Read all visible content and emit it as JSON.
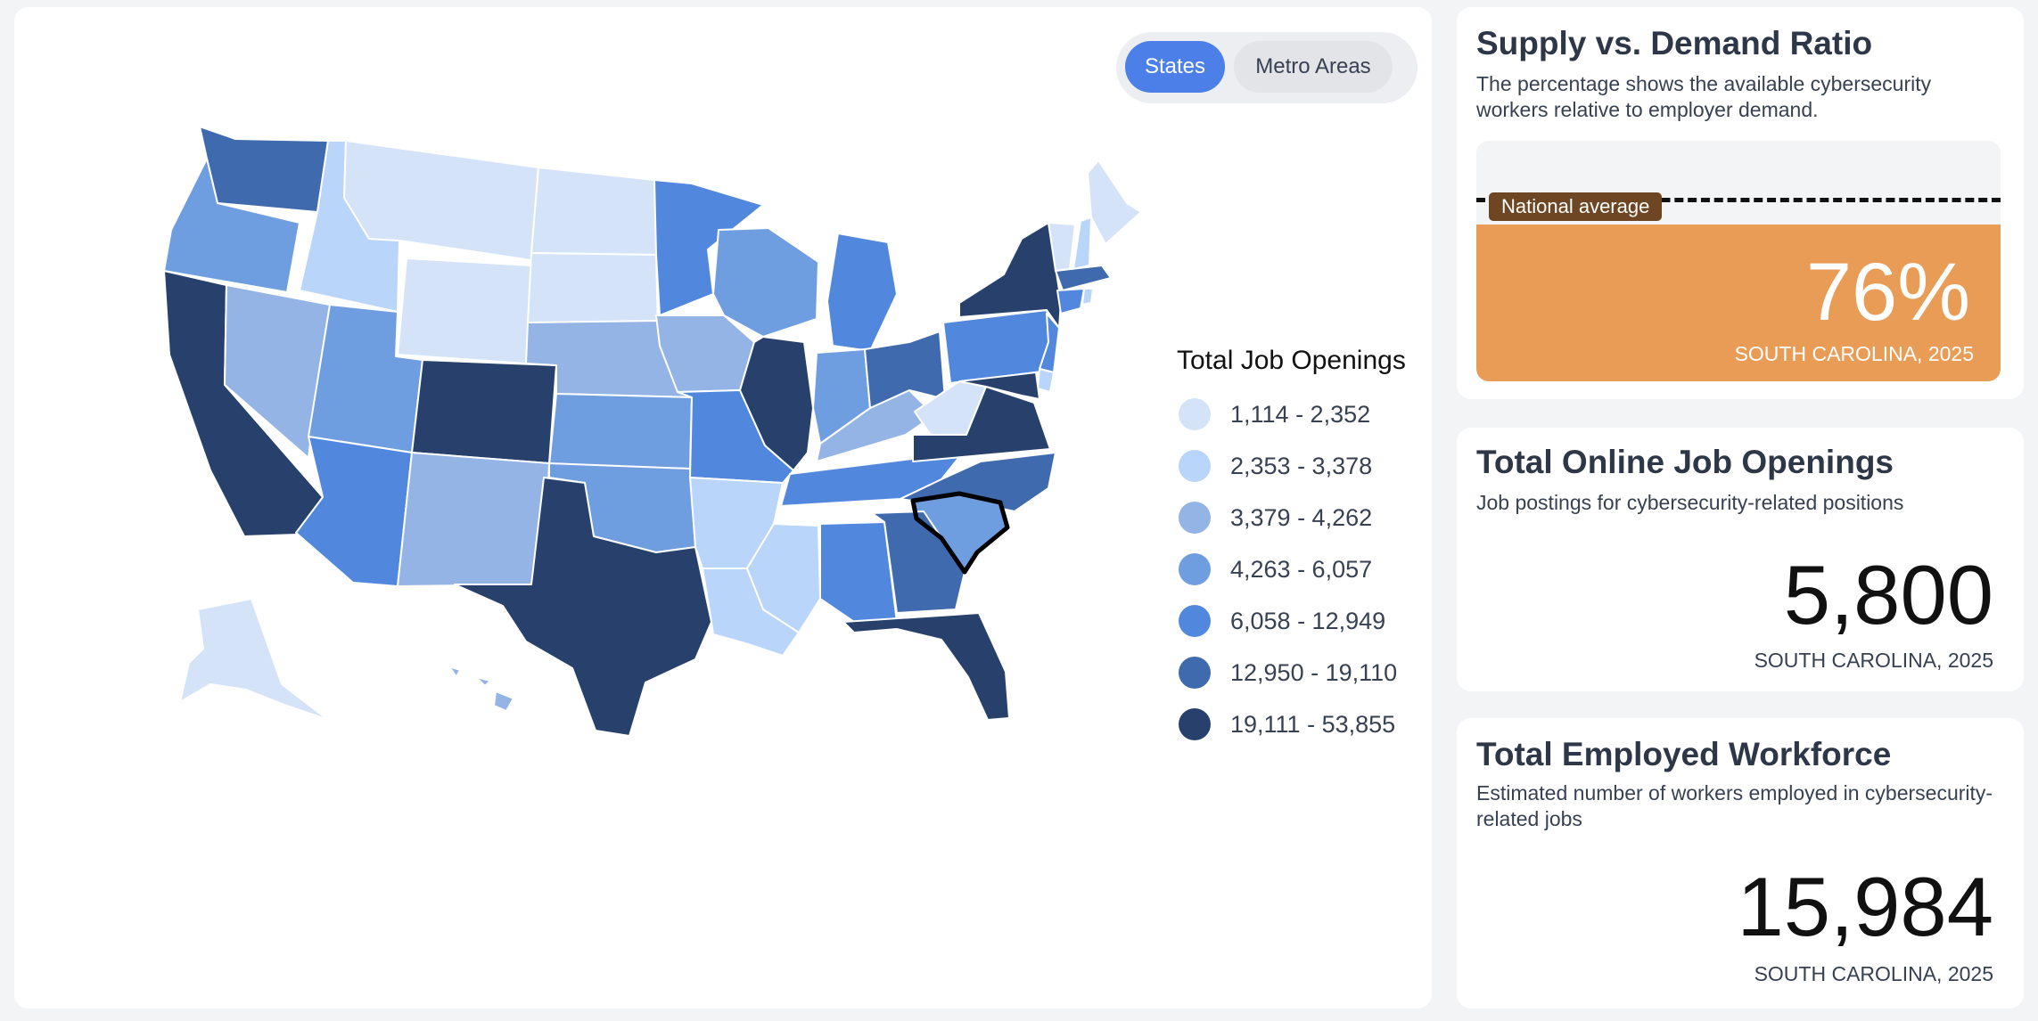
{
  "toggle": {
    "states_label": "States",
    "metro_label": "Metro Areas",
    "active": "States"
  },
  "map": {
    "selected_state": "South Carolina",
    "outline_color": "#ffffff",
    "selected_outline_color": "#000000",
    "state_bins": {
      "WA": 5,
      "OR": 3,
      "CA": 6,
      "NV": 2,
      "ID": 1,
      "MT": 0,
      "WY": 0,
      "UT": 3,
      "AZ": 4,
      "CO": 6,
      "NM": 2,
      "ND": 0,
      "SD": 0,
      "NE": 2,
      "KS": 3,
      "OK": 3,
      "TX": 6,
      "MN": 4,
      "IA": 2,
      "MO": 4,
      "AR": 1,
      "LA": 1,
      "WI": 3,
      "IL": 6,
      "MS": 1,
      "MI": 4,
      "IN": 3,
      "KY": 2,
      "TN": 4,
      "AL": 4,
      "OH": 5,
      "WV": 0,
      "VA": 6,
      "NC": 5,
      "SC": 3,
      "GA": 5,
      "FL": 6,
      "PA": 4,
      "NY": 6,
      "NJ": 4,
      "DE": 1,
      "MD": 6,
      "ME": 0,
      "NH": 1,
      "VT": 0,
      "MA": 5,
      "CT": 4,
      "RI": 1,
      "AK": 0,
      "HI": 2
    }
  },
  "legend": {
    "title": "Total Job Openings",
    "items": [
      {
        "label": "1,114 - 2,352",
        "color": "#d4e3f8"
      },
      {
        "label": "2,353 - 3,378",
        "color": "#b9d5fa"
      },
      {
        "label": "3,379 - 4,262",
        "color": "#94b4e5"
      },
      {
        "label": "4,263 - 6,057",
        "color": "#6f9ee0"
      },
      {
        "label": "6,058 - 12,949",
        "color": "#5188dd"
      },
      {
        "label": "12,950 - 19,110",
        "color": "#3f6aae"
      },
      {
        "label": "19,111 - 53,855",
        "color": "#27416c"
      }
    ]
  },
  "ratio_card": {
    "title": "Supply vs. Demand Ratio",
    "description": "The percentage shows the available cybersecurity workers relative to employer demand.",
    "national_average_label": "National average",
    "value": "76%",
    "fill_fraction": 0.76,
    "caption": "SOUTH CAROLINA, 2025",
    "fill_color": "#e89c56"
  },
  "openings_card": {
    "title": "Total Online Job Openings",
    "description": "Job postings for cybersecurity-related positions",
    "value": "5,800",
    "caption": "SOUTH CAROLINA, 2025"
  },
  "workforce_card": {
    "title": "Total Employed Workforce",
    "description": "Estimated number of workers employed in cybersecurity-related jobs",
    "value": "15,984",
    "caption": "SOUTH CAROLINA, 2025"
  }
}
